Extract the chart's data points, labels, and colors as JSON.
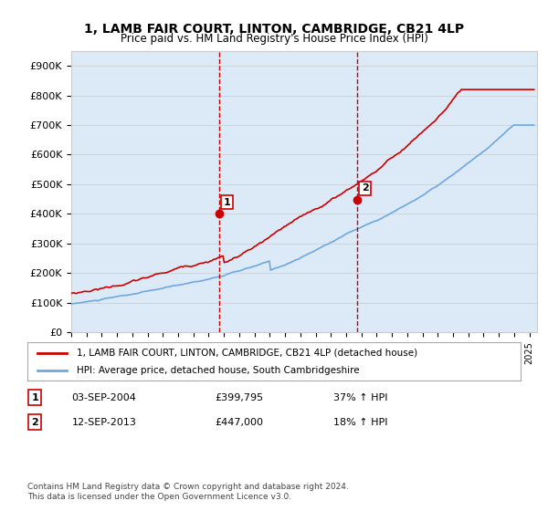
{
  "title": "1, LAMB FAIR COURT, LINTON, CAMBRIDGE, CB21 4LP",
  "subtitle": "Price paid vs. HM Land Registry's House Price Index (HPI)",
  "ylabel_fmt": "£{0}K",
  "yticks": [
    0,
    100,
    200,
    300,
    400,
    500,
    600,
    700,
    800,
    900
  ],
  "ylim": [
    0,
    950000
  ],
  "xlim_start": 1995.0,
  "xlim_end": 2025.5,
  "sale1_x": 2004.67,
  "sale1_y": 399795,
  "sale1_label": "1",
  "sale2_x": 2013.7,
  "sale2_y": 447000,
  "sale2_label": "2",
  "legend_line1": "1, LAMB FAIR COURT, LINTON, CAMBRIDGE, CB21 4LP (detached house)",
  "legend_line2": "HPI: Average price, detached house, South Cambridgeshire",
  "table_row1": "1    03-SEP-2004         £399,795        37% ↑ HPI",
  "table_row2": "2    12-SEP-2013         £447,000        18% ↑ HPI",
  "footer": "Contains HM Land Registry data © Crown copyright and database right 2024.\nThis data is licensed under the Open Government Licence v3.0.",
  "hpi_color": "#6fa8dc",
  "price_color": "#cc0000",
  "bg_color": "#dce9f7",
  "line_color_dashed": "#cc0000",
  "grid_color": "#cccccc"
}
